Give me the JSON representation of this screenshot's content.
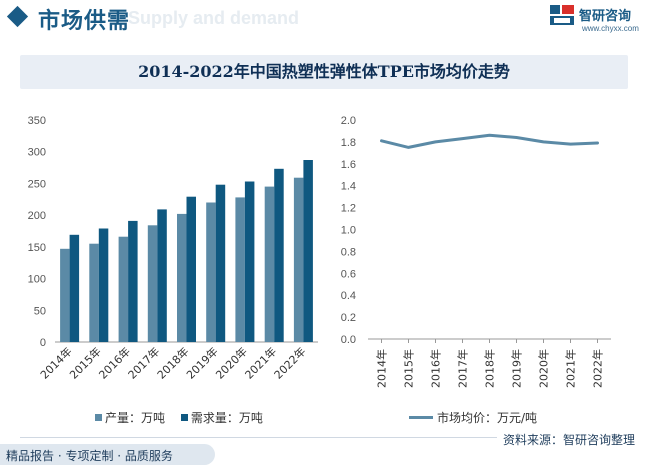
{
  "header": {
    "title": "市场供需",
    "ghost_text": "Supply and demand",
    "brand_name": "智研咨询",
    "brand_url": "www.chyxx.com"
  },
  "chart_title": "2014-2022年中国热塑性弹性体TPE市场均价走势",
  "chart_data": [
    {
      "type": "bar",
      "categories": [
        "2014年",
        "2015年",
        "2016年",
        "2017年",
        "2018年",
        "2019年",
        "2020年",
        "2021年",
        "2022年"
      ],
      "series": [
        {
          "name": "产量：万吨",
          "values": [
            147,
            155,
            166,
            184,
            202,
            220,
            228,
            245,
            259
          ],
          "color": "#5b8aa6"
        },
        {
          "name": "需求量：万吨",
          "values": [
            169,
            179,
            191,
            209,
            229,
            248,
            253,
            273,
            287
          ],
          "color": "#0f5880"
        }
      ],
      "ylim": [
        0,
        350
      ],
      "yticks": [
        0,
        50,
        100,
        150,
        200,
        250,
        300,
        350
      ],
      "grid": false,
      "legend": "bottom"
    },
    {
      "type": "line",
      "categories": [
        "2014年",
        "2015年",
        "2016年",
        "2017年",
        "2018年",
        "2019年",
        "2020年",
        "2021年",
        "2022年"
      ],
      "series": [
        {
          "name": "市场均价：万元/吨",
          "values": [
            1.81,
            1.75,
            1.8,
            1.83,
            1.86,
            1.84,
            1.8,
            1.78,
            1.79
          ],
          "color": "#5b8aa6"
        }
      ],
      "ylim": [
        0,
        2.0
      ],
      "yticks": [
        "0.0",
        "0.2",
        "0.4",
        "0.6",
        "0.8",
        "1.0",
        "1.2",
        "1.4",
        "1.6",
        "1.8",
        "2.0"
      ],
      "grid": false,
      "legend": "bottom"
    }
  ],
  "footer": {
    "left": "精品报告 · 专项定制 · 品质服务",
    "right": "资料来源：智研咨询整理"
  }
}
